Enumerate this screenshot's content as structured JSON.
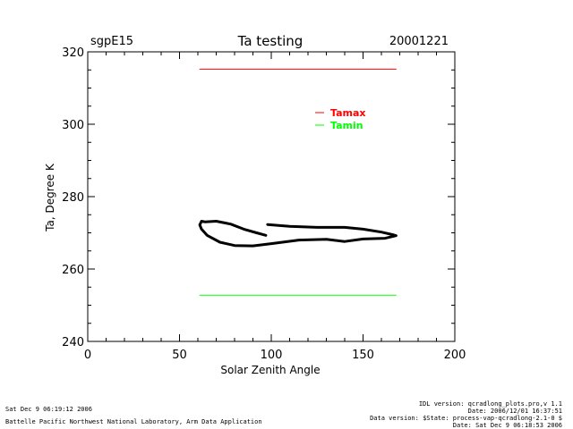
{
  "chart_data": {
    "type": "line",
    "title": "Ta testing",
    "site_label": "sgpE15",
    "date_label": "20001221",
    "xlabel": "Solar Zenith Angle",
    "ylabel": "Ta, Degree K",
    "xlim": [
      0,
      200
    ],
    "ylim": [
      240,
      320
    ],
    "x_ticks": [
      0,
      50,
      100,
      150,
      200
    ],
    "y_ticks": [
      240,
      260,
      280,
      300,
      320
    ],
    "grid": false,
    "legend_position": "upper-right",
    "series": [
      {
        "name": "Tamax",
        "color": "#ff0000",
        "x": [
          61,
          168
        ],
        "y": [
          315.2,
          315.2
        ]
      },
      {
        "name": "Tamin",
        "color": "#00ff00",
        "x": [
          61,
          168
        ],
        "y": [
          252.8,
          252.8
        ]
      },
      {
        "name": "Ta",
        "color": "#000000",
        "x": [
          98,
          110,
          125,
          140,
          150,
          160,
          166,
          168,
          162,
          150,
          140,
          130,
          115,
          100,
          90,
          80,
          72,
          65,
          62,
          61,
          62,
          64,
          70,
          78,
          85,
          92,
          97
        ],
        "y": [
          272.3,
          271.8,
          271.5,
          271.5,
          271.0,
          270.2,
          269.5,
          269.2,
          268.5,
          268.3,
          267.6,
          268.2,
          268.0,
          267.0,
          266.4,
          266.5,
          267.4,
          269.3,
          271.0,
          272.2,
          273.2,
          273.0,
          273.2,
          272.4,
          271.0,
          270.0,
          269.3
        ]
      }
    ]
  },
  "footer": {
    "timestamp": "Sat Dec  9 06:19:12 2006",
    "lab": "Battelle Pacific Northwest National Laboratory, Arm Data Application",
    "idl_version": "IDL version: qcradlong_plots.pro,v 1.1",
    "date": "Date: 2006/12/01 16:37:51",
    "data_version": "Data version: $State: process-vap-qcradlong-2.1-0 $",
    "date2": "Date: Sat Dec  9 06:18:53 2006"
  }
}
